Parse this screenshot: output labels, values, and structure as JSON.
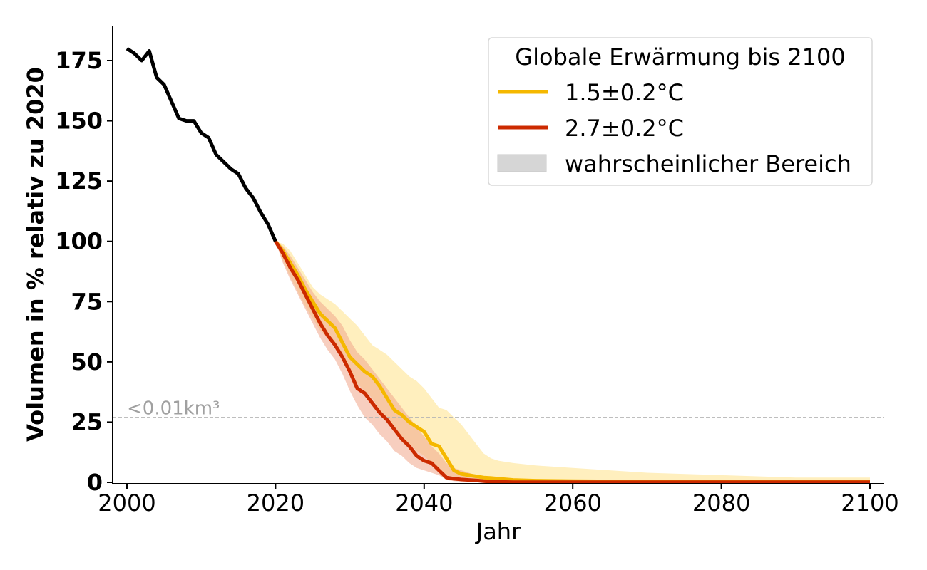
{
  "chart_data": {
    "type": "line",
    "title": "",
    "xlabel": "Jahr",
    "ylabel": "Volumen in % relativ zu 2020",
    "xlim": [
      1998,
      2102
    ],
    "ylim": [
      -1,
      190
    ],
    "x_ticks": [
      "2000",
      "2020",
      "2040",
      "2060",
      "2080",
      "2100"
    ],
    "y_ticks": [
      "0",
      "25",
      "50",
      "75",
      "100",
      "125",
      "150",
      "175"
    ],
    "grid": false,
    "legend": {
      "title": "Globale Erwärmung bis 2100",
      "placement": "top-right",
      "entries": [
        "1.5±0.2°C",
        "2.7±0.2°C",
        "wahrscheinlicher Bereich"
      ]
    },
    "annotation": {
      "text": "<0.01km³",
      "reference_y": 27
    },
    "colors": {
      "observed": "#000000",
      "scenario_1_5": "#f5b800",
      "scenario_2_7": "#cc2a00",
      "band_1_5": "#ffe9a8",
      "band_2_7": "#f0a58a",
      "legend_patch": "#d6d6d6",
      "reference_line": "#b5b5b5"
    },
    "observed": {
      "x": [
        2000,
        2001,
        2002,
        2003,
        2004,
        2005,
        2006,
        2007,
        2008,
        2009,
        2010,
        2011,
        2012,
        2013,
        2014,
        2015,
        2016,
        2017,
        2018,
        2019,
        2020
      ],
      "y": [
        180,
        178,
        175,
        179,
        168,
        165,
        158,
        151,
        150,
        150,
        145,
        143,
        136,
        133,
        130,
        128,
        122,
        118,
        112,
        107,
        100
      ]
    },
    "series": [
      {
        "name": "1.5±0.2°C",
        "x": [
          2020,
          2021,
          2022,
          2023,
          2024,
          2025,
          2026,
          2027,
          2028,
          2029,
          2030,
          2031,
          2032,
          2033,
          2034,
          2035,
          2036,
          2037,
          2038,
          2039,
          2040,
          2041,
          2042,
          2043,
          2044,
          2045,
          2046,
          2047,
          2048,
          2049,
          2050,
          2052,
          2055,
          2060,
          2065,
          2070,
          2080,
          2090,
          2100
        ],
        "y": [
          100,
          96,
          91,
          86,
          80,
          75,
          70,
          67,
          64,
          58,
          52,
          49,
          46,
          44,
          40,
          35,
          30,
          28,
          25,
          23,
          21,
          16,
          15,
          10,
          5,
          3.5,
          3,
          2.5,
          2,
          1.8,
          1.5,
          1,
          0.7,
          0.5,
          0.4,
          0.3,
          0.3,
          0.3,
          0.3
        ],
        "band_lower": [
          100,
          92,
          85,
          79,
          73,
          68,
          63,
          60,
          56,
          51,
          45,
          41,
          38,
          35,
          30,
          26,
          22,
          19,
          16,
          13,
          11,
          8,
          6,
          3,
          2,
          1.5,
          1,
          0.7,
          0.5,
          0.3,
          0.2,
          0.1,
          0.1,
          0,
          0,
          0,
          0,
          0,
          0
        ],
        "band_upper": [
          100,
          99,
          96,
          91,
          86,
          81,
          78,
          76,
          74,
          71,
          68,
          65,
          61,
          57,
          55,
          53,
          50,
          47,
          44,
          42,
          39,
          35,
          31,
          30,
          27,
          24,
          20,
          16,
          12,
          10,
          9,
          8,
          7,
          6,
          5,
          4,
          3,
          2,
          2
        ]
      },
      {
        "name": "2.7±0.2°C",
        "x": [
          2020,
          2021,
          2022,
          2023,
          2024,
          2025,
          2026,
          2027,
          2028,
          2029,
          2030,
          2031,
          2032,
          2033,
          2034,
          2035,
          2036,
          2037,
          2038,
          2039,
          2040,
          2041,
          2042,
          2043,
          2044,
          2045,
          2046,
          2047,
          2048,
          2049,
          2050,
          2052,
          2055,
          2060,
          2070,
          2080,
          2090,
          2100
        ],
        "y": [
          100,
          95,
          89,
          84,
          78,
          72,
          66,
          61,
          57,
          52,
          46,
          39,
          37,
          33,
          29,
          26,
          22,
          18,
          15,
          11,
          9,
          8,
          5,
          2,
          1.5,
          1.2,
          1,
          0.8,
          0.5,
          0.3,
          0.2,
          0.1,
          0.1,
          0.1,
          0.1,
          0.1,
          0.1,
          0.1
        ],
        "band_lower": [
          100,
          91,
          84,
          78,
          72,
          66,
          60,
          55,
          51,
          45,
          38,
          32,
          27,
          24,
          20,
          17,
          13,
          11,
          8,
          6,
          5,
          4,
          3,
          1,
          0.5,
          0.3,
          0.2,
          0.1,
          0,
          0,
          0,
          0,
          0,
          0,
          0,
          0,
          0,
          0
        ],
        "band_upper": [
          100,
          98,
          94,
          89,
          84,
          79,
          75,
          72,
          69,
          65,
          59,
          54,
          51,
          47,
          43,
          39,
          35,
          31,
          27,
          23,
          19,
          15,
          12,
          8,
          6,
          5,
          4,
          3,
          2.5,
          2,
          2,
          1.5,
          1,
          0.5,
          0.3,
          0.2,
          0.2,
          0.2
        ]
      }
    ]
  }
}
